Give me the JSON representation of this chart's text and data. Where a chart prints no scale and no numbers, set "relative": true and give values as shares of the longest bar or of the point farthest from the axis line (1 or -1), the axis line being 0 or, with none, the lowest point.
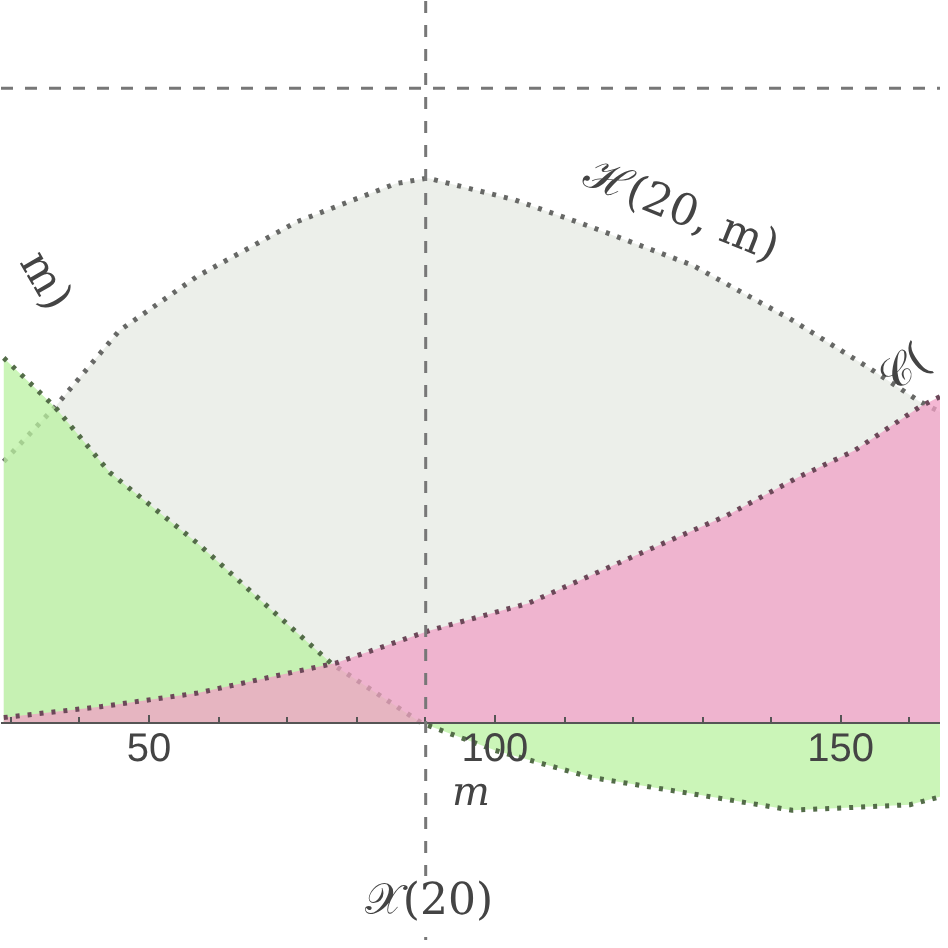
{
  "chart_data": {
    "type": "area",
    "relative": true,
    "xlabel": "m",
    "xlim": [
      28.6,
      164.5
    ],
    "xticks": [
      50,
      100,
      150
    ],
    "grid": false,
    "line_style": "dotted",
    "series": [
      {
        "color": "#e6e9e3",
        "x": [
          29,
          36.4,
          45.7,
          57,
          71.4,
          85.7,
          90.3,
          102.9,
          114,
          128.6,
          142.9,
          154.3,
          161.4,
          164.5
        ],
        "values": [
          0.48,
          0.58,
          0.72,
          0.82,
          0.92,
          0.99,
          1.0,
          0.96,
          0.91,
          0.84,
          0.74,
          0.65,
          0.59,
          0.57
        ]
      },
      {
        "color": "#b9f2a0",
        "x": [
          29,
          36.4,
          44.3,
          57,
          66.6,
          76.3,
          89.4,
          100,
          114,
          128.6,
          143,
          160,
          164.5
        ],
        "values": [
          0.67,
          0.58,
          0.46,
          0.33,
          0.22,
          0.11,
          0.0,
          -0.05,
          -0.1,
          -0.13,
          -0.16,
          -0.15,
          -0.135
        ]
      },
      {
        "color": "#f0a0c6",
        "x": [
          29,
          43,
          57,
          71.4,
          77,
          90.6,
          104.9,
          119,
          133.4,
          143.7,
          152,
          161.4,
          164.5
        ],
        "values": [
          0.01,
          0.03,
          0.055,
          0.095,
          0.11,
          0.17,
          0.22,
          0.3,
          0.38,
          0.45,
          0.5,
          0.58,
          0.6
        ]
      }
    ],
    "ref_lines": [
      {
        "axis": "x",
        "value": 90,
        "color": "#777777",
        "line_style": "dashed"
      },
      {
        "axis": "y",
        "value": 1.165,
        "color": "#777777",
        "line_style": "dashed"
      }
    ],
    "annotations": [
      "ℋ(20, m)",
      "m)",
      "𝒞(",
      "𝒳(20)"
    ]
  }
}
